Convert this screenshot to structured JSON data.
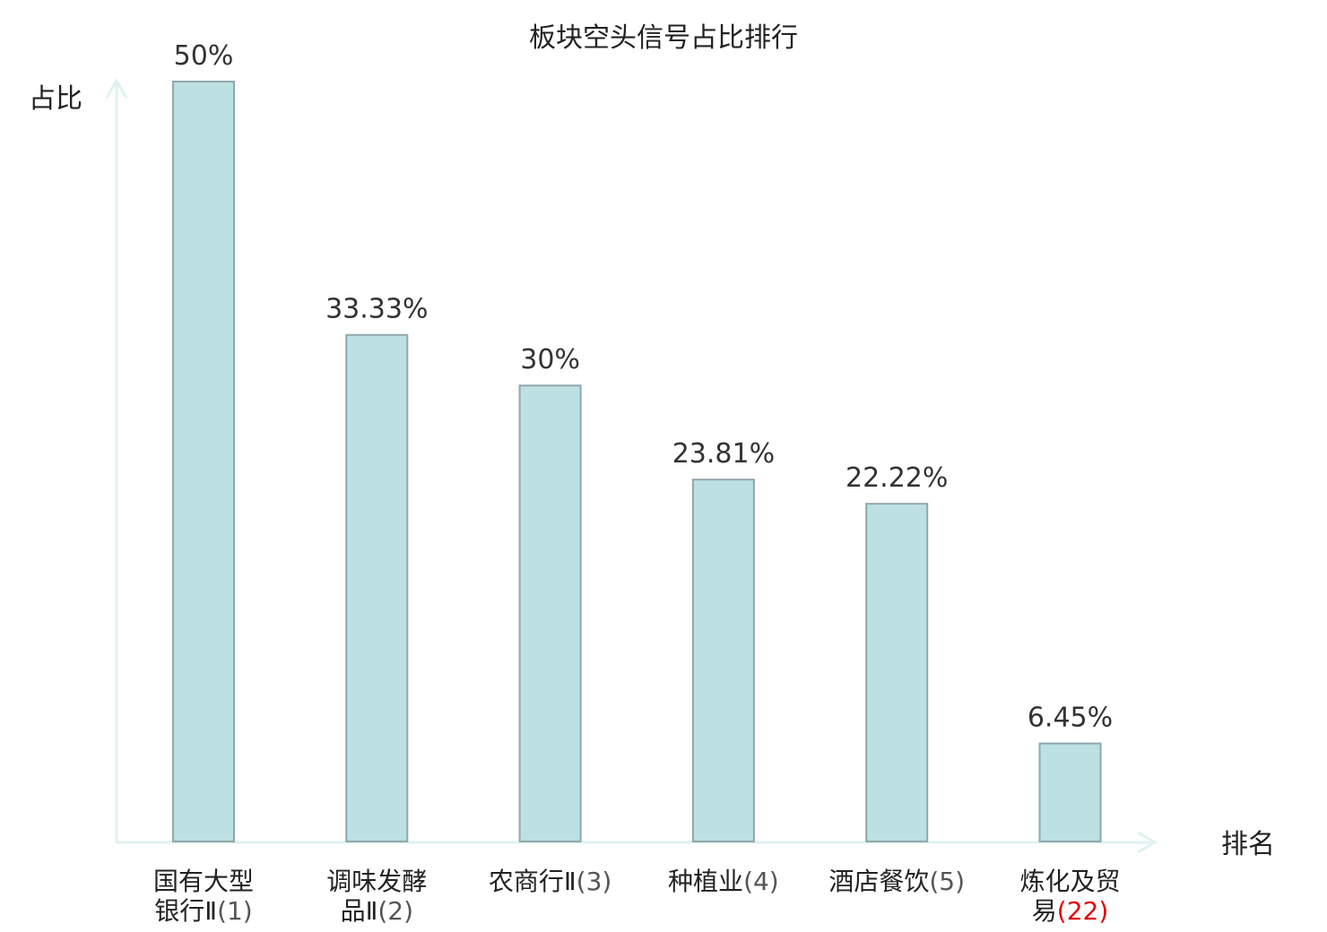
{
  "chart_data": {
    "type": "bar",
    "title": "板块空头信号占比排行",
    "ylabel": "占比",
    "xlabel": "排名",
    "ylim": [
      0,
      50
    ],
    "grid": false,
    "colors": {
      "bar_fill": "#bde0e2",
      "bar_stroke": "#8fa8ab",
      "axis": "#dff2ef",
      "highlight_text": "#e00000"
    },
    "categories": [
      {
        "lines": [
          "国有大型",
          "银行Ⅱ"
        ],
        "rank": "(1)",
        "highlight": false
      },
      {
        "lines": [
          "调味发酵",
          "品Ⅱ"
        ],
        "rank": "(2)",
        "highlight": false
      },
      {
        "lines": [
          "农商行Ⅱ"
        ],
        "rank": "(3)",
        "highlight": false
      },
      {
        "lines": [
          "种植业"
        ],
        "rank": "(4)",
        "highlight": false
      },
      {
        "lines": [
          "酒店餐饮"
        ],
        "rank": "(5)",
        "highlight": false
      },
      {
        "lines": [
          "炼化及贸",
          "易"
        ],
        "rank": "(22)",
        "highlight": true
      }
    ],
    "values": [
      50,
      33.33,
      30,
      23.81,
      22.22,
      6.45
    ],
    "value_labels": [
      "50%",
      "33.33%",
      "30%",
      "23.81%",
      "22.22%",
      "6.45%"
    ]
  }
}
